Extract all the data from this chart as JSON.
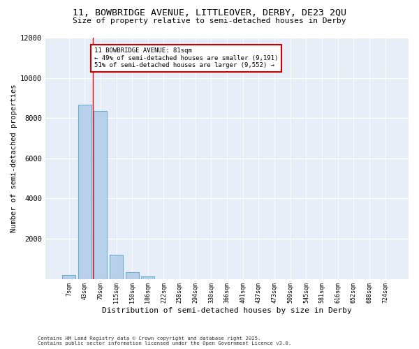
{
  "title_line1": "11, BOWBRIDGE AVENUE, LITTLEOVER, DERBY, DE23 2QU",
  "title_line2": "Size of property relative to semi-detached houses in Derby",
  "xlabel": "Distribution of semi-detached houses by size in Derby",
  "ylabel": "Number of semi-detached properties",
  "categories": [
    "7sqm",
    "43sqm",
    "79sqm",
    "115sqm",
    "150sqm",
    "186sqm",
    "222sqm",
    "258sqm",
    "294sqm",
    "330sqm",
    "366sqm",
    "401sqm",
    "437sqm",
    "473sqm",
    "509sqm",
    "545sqm",
    "581sqm",
    "616sqm",
    "652sqm",
    "688sqm",
    "724sqm"
  ],
  "values": [
    200,
    8650,
    8350,
    1200,
    350,
    120,
    0,
    0,
    0,
    0,
    0,
    0,
    0,
    0,
    0,
    0,
    0,
    0,
    0,
    0,
    0
  ],
  "bar_color": "#b8d0ea",
  "bar_edge_color": "#6aaed6",
  "vline_x": 1.5,
  "annotation_title": "11 BOWBRIDGE AVENUE: 81sqm",
  "annotation_line2": "← 49% of semi-detached houses are smaller (9,191)",
  "annotation_line3": "51% of semi-detached houses are larger (9,552) →",
  "annotation_box_color": "#ffffff",
  "annotation_border_color": "#cc0000",
  "ylim": [
    0,
    12000
  ],
  "yticks": [
    0,
    2000,
    4000,
    6000,
    8000,
    10000,
    12000
  ],
  "background_color": "#e8eef8",
  "footer_line1": "Contains HM Land Registry data © Crown copyright and database right 2025.",
  "footer_line2": "Contains public sector information licensed under the Open Government Licence v3.0."
}
